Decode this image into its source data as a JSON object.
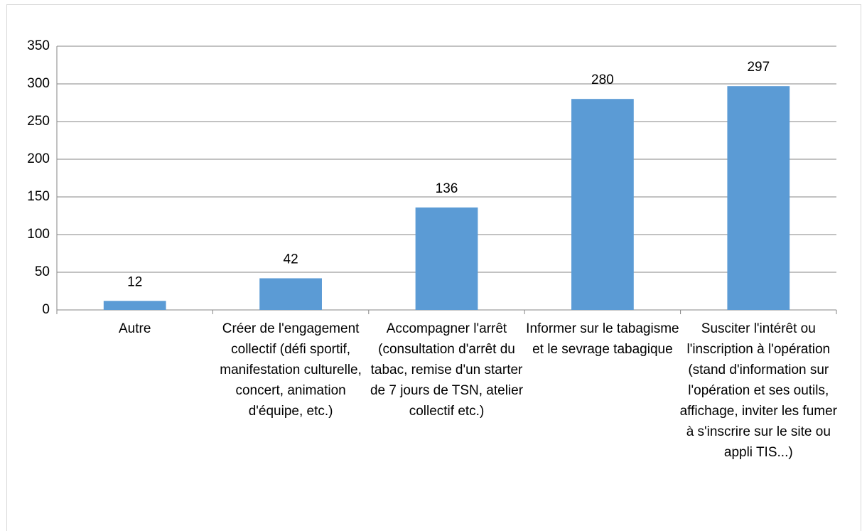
{
  "chart_data": {
    "type": "bar",
    "categories": [
      "Autre",
      "Créer de l'engagement collectif (défi sportif, manifestation culturelle, concert, animation d'équipe, etc.)",
      "Accompagner l'arrêt (consultation d'arrêt du tabac, remise d'un starter de 7 jours de TSN, atelier collectif etc.)",
      "Informer sur le tabagisme et le sevrage tabagique",
      "Susciter l'intérêt ou l'inscription à l'opération (stand d'information sur l'opération et ses outils, affichage, inviter les fumer à s'inscrire sur le site ou appli TIS...)"
    ],
    "values": [
      12,
      42,
      136,
      280,
      297
    ],
    "color": "#5b9bd5",
    "ylim": [
      0,
      350
    ],
    "yticks": [
      0,
      50,
      100,
      150,
      200,
      250,
      300,
      350
    ],
    "grid": true
  }
}
